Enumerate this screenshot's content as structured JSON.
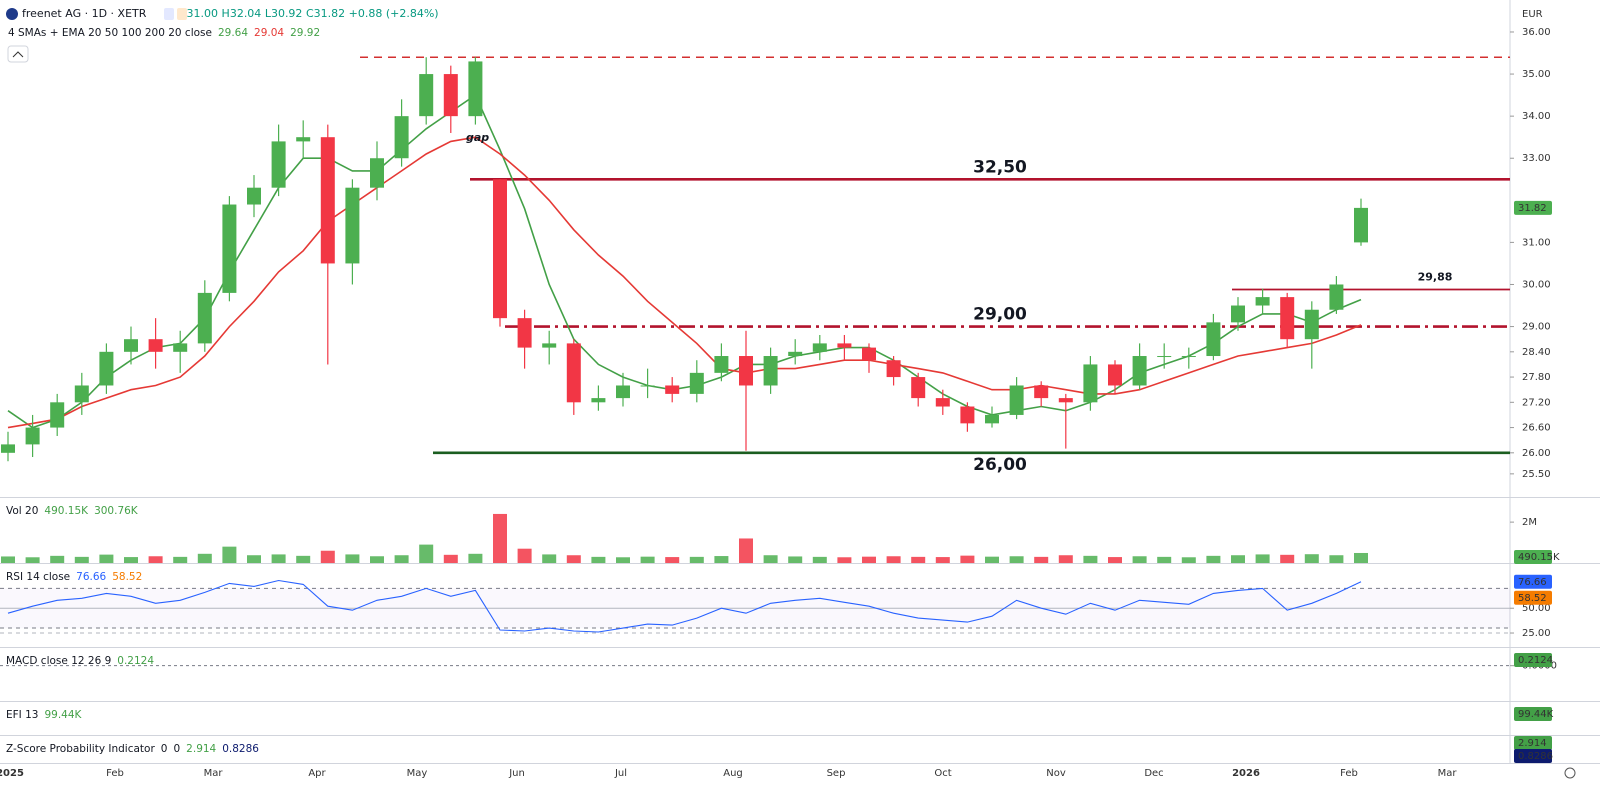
{
  "header": {
    "symbol": "freenet AG · 1D · XETR",
    "ohlc": {
      "open": "O31.00",
      "high": "H32.04",
      "low": "L30.92",
      "close": "C31.82",
      "change": "+0.88 (+2.84%)"
    },
    "ma_legend": {
      "title": "4 SMAs + EMA 20 50 100 200 20 close",
      "values": [
        {
          "text": "29.64",
          "color": "#43a047"
        },
        {
          "text": "29.04",
          "color": "#e53935"
        },
        {
          "text": "29.92",
          "color": "#43a047"
        }
      ]
    }
  },
  "chart_data": [
    {
      "type": "candlestick",
      "currency": "EUR",
      "up_color": "#4caf50",
      "down_color": "#f23645",
      "open": [
        26.0,
        26.2,
        26.6,
        27.2,
        27.6,
        28.4,
        28.7,
        28.4,
        28.6,
        29.8,
        31.9,
        32.3,
        33.4,
        33.5,
        30.5,
        32.3,
        33.0,
        34.0,
        35.0,
        34.0,
        32.5,
        29.2,
        28.5,
        28.6,
        27.2,
        27.3,
        27.6,
        27.6,
        27.4,
        27.9,
        28.3,
        27.6,
        28.3,
        28.4,
        28.6,
        28.5,
        28.2,
        27.8,
        27.3,
        27.1,
        26.7,
        26.9,
        27.6,
        27.3,
        27.2,
        28.1,
        27.6,
        28.3,
        28.3,
        28.3,
        29.1,
        29.5,
        29.7,
        28.7,
        29.4,
        31.0
      ],
      "high": [
        26.5,
        26.9,
        27.4,
        27.9,
        28.6,
        29.0,
        29.2,
        28.9,
        30.1,
        32.1,
        32.6,
        33.8,
        33.9,
        33.8,
        32.5,
        33.4,
        34.4,
        35.4,
        35.2,
        35.4,
        32.5,
        29.4,
        28.9,
        28.7,
        27.6,
        27.9,
        28.0,
        27.8,
        28.2,
        28.6,
        28.9,
        28.5,
        28.7,
        28.8,
        28.8,
        28.6,
        28.3,
        27.9,
        27.5,
        27.2,
        27.1,
        27.8,
        27.7,
        27.4,
        28.3,
        28.2,
        28.6,
        28.6,
        28.5,
        29.3,
        29.7,
        29.9,
        29.8,
        29.6,
        30.2,
        32.04
      ],
      "low": [
        25.8,
        25.9,
        26.4,
        26.9,
        27.4,
        28.1,
        28.0,
        27.9,
        28.4,
        29.6,
        31.6,
        32.1,
        33.0,
        28.1,
        30.0,
        32.0,
        32.8,
        33.8,
        33.6,
        33.8,
        29.0,
        28.0,
        28.1,
        26.9,
        27.0,
        27.1,
        27.3,
        27.2,
        27.2,
        27.7,
        26.05,
        27.4,
        28.1,
        28.2,
        28.2,
        27.9,
        27.6,
        27.1,
        26.9,
        26.5,
        26.6,
        26.8,
        27.1,
        26.1,
        27.0,
        27.4,
        27.5,
        28.0,
        28.0,
        28.2,
        28.9,
        29.3,
        28.5,
        28.0,
        29.3,
        30.92
      ],
      "close": [
        26.2,
        26.6,
        27.2,
        27.6,
        28.4,
        28.7,
        28.4,
        28.6,
        29.8,
        31.9,
        32.3,
        33.4,
        33.5,
        30.5,
        32.3,
        33.0,
        34.0,
        35.0,
        34.0,
        35.3,
        29.2,
        28.5,
        28.6,
        27.2,
        27.3,
        27.6,
        27.6,
        27.4,
        27.9,
        28.3,
        27.6,
        28.3,
        28.4,
        28.6,
        28.5,
        28.2,
        27.8,
        27.3,
        27.1,
        26.7,
        26.9,
        27.6,
        27.3,
        27.2,
        28.1,
        27.6,
        28.3,
        28.3,
        28.3,
        29.1,
        29.5,
        29.7,
        28.7,
        29.4,
        30.0,
        31.82
      ],
      "series": [
        {
          "color": "#43a047",
          "values": [
            27.0,
            26.6,
            26.8,
            27.2,
            27.8,
            28.2,
            28.5,
            28.6,
            29.2,
            30.3,
            31.3,
            32.3,
            33.0,
            33.0,
            32.7,
            32.7,
            33.2,
            33.7,
            34.1,
            34.5,
            33.2,
            31.8,
            30.0,
            28.7,
            28.1,
            27.8,
            27.6,
            27.5,
            27.6,
            27.8,
            28.1,
            28.1,
            28.3,
            28.4,
            28.5,
            28.5,
            28.2,
            27.8,
            27.4,
            27.1,
            26.9,
            27.0,
            27.1,
            27.0,
            27.2,
            27.5,
            27.9,
            28.1,
            28.3,
            28.6,
            29.0,
            29.3,
            29.3,
            29.1,
            29.4,
            29.64
          ]
        },
        {
          "color": "#e53935",
          "values": [
            26.6,
            26.7,
            26.8,
            27.1,
            27.3,
            27.5,
            27.6,
            27.8,
            28.3,
            29.0,
            29.6,
            30.3,
            30.8,
            31.5,
            31.9,
            32.3,
            32.7,
            33.1,
            33.4,
            33.5,
            33.1,
            32.6,
            32.0,
            31.3,
            30.7,
            30.2,
            29.6,
            29.1,
            28.6,
            28.0,
            27.9,
            28.0,
            28.0,
            28.1,
            28.2,
            28.2,
            28.1,
            28.0,
            27.9,
            27.7,
            27.5,
            27.5,
            27.6,
            27.5,
            27.4,
            27.4,
            27.5,
            27.7,
            27.9,
            28.1,
            28.3,
            28.4,
            28.5,
            28.6,
            28.8,
            29.04
          ]
        }
      ],
      "ylim": [
        24.95,
        36.76
      ],
      "yticks": [
        {
          "value": 36,
          "label": "36.00"
        },
        {
          "value": 35,
          "label": "35.00"
        },
        {
          "value": 34,
          "label": "34.00"
        },
        {
          "value": 33,
          "label": "33.00"
        },
        {
          "value": 31,
          "label": "31.00"
        },
        {
          "value": 30,
          "label": "30.00"
        },
        {
          "value": 29,
          "label": "29.00"
        },
        {
          "value": 28.4,
          "label": "28.40"
        },
        {
          "value": 27.8,
          "label": "27.80"
        },
        {
          "value": 27.2,
          "label": "27.20"
        },
        {
          "value": 26.6,
          "label": "26.60"
        },
        {
          "value": 26,
          "label": "26.00"
        },
        {
          "value": 25.5,
          "label": "25.50"
        }
      ],
      "levels": [
        {
          "value": 35.4,
          "color": "#d32f2f",
          "style": "dashed"
        },
        {
          "value": 32.5,
          "label": "32,50",
          "color": "#b2132d",
          "style": "solid"
        },
        {
          "value": 29.0,
          "label": "29,00",
          "color": "#b2132d",
          "style": "dashdot"
        },
        {
          "value": 29.88,
          "label": "29,88",
          "color": "#b2132d",
          "style": "solid"
        },
        {
          "value": 26.0,
          "label": "26,00",
          "color": "#1b5e20",
          "style": "solid"
        }
      ],
      "annotations": [
        {
          "text": "gap",
          "color": "#2962ff"
        }
      ],
      "x_labels": [
        "2025",
        "Feb",
        "Mar",
        "Apr",
        "May",
        "Jun",
        "Jul",
        "Aug",
        "Sep",
        "Oct",
        "Nov",
        "Dec",
        "2026",
        "Feb",
        "Mar"
      ]
    },
    {
      "type": "bar",
      "title": "Vol 20",
      "legend_values": [
        "490.15K",
        "300.76K"
      ],
      "values": [
        320000,
        280000,
        350000,
        300000,
        410000,
        290000,
        330000,
        300000,
        450000,
        800000,
        380000,
        420000,
        350000,
        600000,
        420000,
        330000,
        380000,
        900000,
        400000,
        450000,
        2400000,
        700000,
        420000,
        380000,
        300000,
        280000,
        310000,
        290000,
        300000,
        340000,
        1200000,
        380000,
        320000,
        300000,
        280000,
        310000,
        330000,
        300000,
        290000,
        360000,
        310000,
        330000,
        300000,
        380000,
        350000,
        290000,
        330000,
        300000,
        280000,
        350000,
        380000,
        420000,
        400000,
        430000,
        380000,
        490150
      ],
      "ylim": [
        0,
        3180000
      ],
      "yticks": [
        {
          "value": 2000000,
          "label": "2M"
        }
      ]
    },
    {
      "type": "line",
      "title": "RSI 14 close",
      "legend_values": [
        {
          "text": "76.66",
          "color": "#2962ff"
        },
        {
          "text": "58.52",
          "color": "#f57c00"
        }
      ],
      "color": "#2962ff",
      "values": [
        45,
        52,
        58,
        60,
        65,
        62,
        55,
        58,
        66,
        75,
        72,
        78,
        74,
        52,
        48,
        58,
        62,
        70,
        62,
        68,
        28,
        27,
        30,
        27,
        26,
        30,
        34,
        33,
        40,
        50,
        45,
        55,
        58,
        60,
        56,
        52,
        45,
        40,
        38,
        36,
        42,
        58,
        50,
        44,
        55,
        48,
        58,
        56,
        54,
        65,
        68,
        70,
        48,
        55,
        65,
        76.66
      ],
      "ylim": [
        10.9,
        94.6
      ],
      "yticks": [
        {
          "value": 50,
          "label": "50.00"
        },
        {
          "value": 25,
          "label": "25.00"
        }
      ],
      "bands": [
        70,
        30
      ]
    },
    {
      "type": "indicator",
      "title": "MACD close 12 26 9",
      "legend_values": [
        {
          "text": "0.2124",
          "color": "#43a047"
        }
      ],
      "ylim": [
        -1.0,
        0.5
      ],
      "yticks": [
        {
          "value": 0,
          "label": "0.0000"
        }
      ]
    },
    {
      "type": "indicator",
      "title": "EFI 13",
      "legend_values": [
        {
          "text": "99.44K",
          "color": "#43a047"
        }
      ]
    },
    {
      "type": "indicator",
      "title": "Z-Score Probability Indicator",
      "legend_values": [
        {
          "text": "0",
          "color": "#131722"
        },
        {
          "text": "0",
          "color": "#131722"
        },
        {
          "text": "2.914",
          "color": "#43a047"
        },
        {
          "text": "0.8286",
          "color": "#0d1b6e"
        }
      ]
    }
  ]
}
